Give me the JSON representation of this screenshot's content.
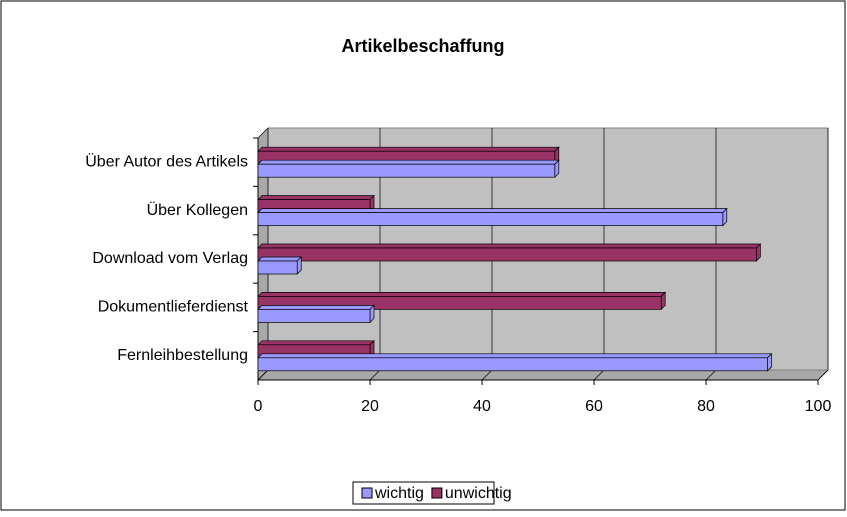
{
  "chart_data": {
    "type": "bar",
    "orientation": "horizontal",
    "title": "Artikelbeschaffung",
    "categories": [
      "Über Autor des Artikels",
      "Über Kollegen",
      "Download vom Verlag",
      "Dokumentlieferdienst",
      "Fernleihbestellung"
    ],
    "series": [
      {
        "name": "wichtig",
        "color": "#9999ff",
        "values": [
          53,
          83,
          7,
          20,
          91
        ]
      },
      {
        "name": "unwichtig",
        "color": "#993366",
        "values": [
          53,
          20,
          89,
          72,
          20
        ]
      }
    ],
    "xlim": [
      0,
      100
    ],
    "xticks": [
      0,
      20,
      40,
      60,
      80,
      100
    ],
    "grid": true,
    "legend": "bottom"
  }
}
